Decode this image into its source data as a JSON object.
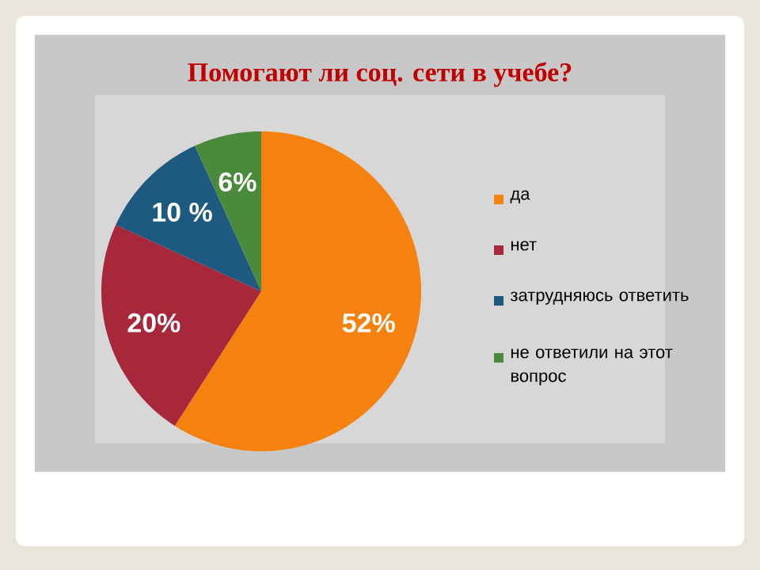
{
  "chart_data": {
    "type": "pie",
    "title": "Помогают ли соц. сети в учебе?",
    "categories": [
      "да",
      "нет",
      "затрудняюсь ответить",
      "не ответили на этот вопрос"
    ],
    "values": [
      52,
      20,
      10,
      6
    ],
    "colors": [
      "#f5820f",
      "#a6283a",
      "#1e5a80",
      "#4a8a3c"
    ],
    "value_labels": [
      "52%",
      "20%",
      "10 %",
      "6%"
    ],
    "legend": "right"
  }
}
